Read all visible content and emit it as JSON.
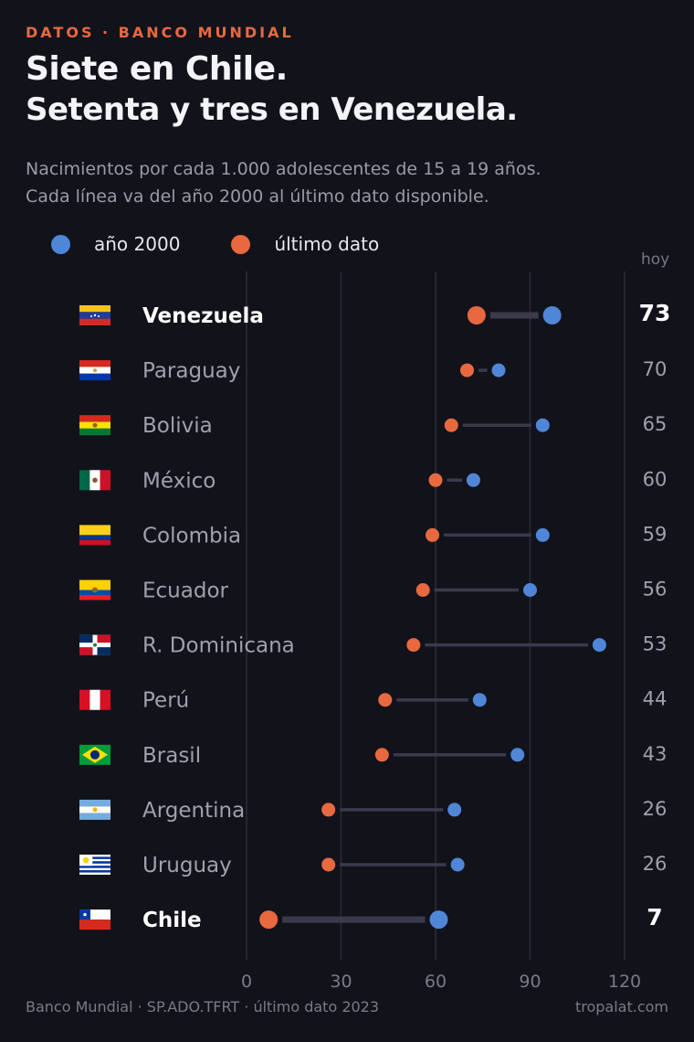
{
  "header": {
    "eyebrow": "DATOS · BANCO MUNDIAL",
    "title_line1": "Siete en Chile.",
    "title_line2": "Setenta y tres en Venezuela.",
    "subtitle_line1": "Nacimientos por cada 1.000 adolescentes de 15 a 19 años.",
    "subtitle_line2": "Cada línea va del año 2000 al último dato disponible."
  },
  "legend": {
    "start_label": "año 2000",
    "end_label": "último dato",
    "column_label": "hoy"
  },
  "colors": {
    "start": "#4f86d8",
    "end": "#e8693f",
    "connector": "#3a3a4c",
    "grid": "#2c2c38",
    "highlight_text": "#ffffff",
    "muted_text": "#a0a0ae",
    "background": "#12121b"
  },
  "chart_data": {
    "type": "dumbbell",
    "x_ticks": [
      "0",
      "30",
      "60",
      "90",
      "120"
    ],
    "xlim": [
      0,
      120
    ],
    "grid": true,
    "legend_placement": "top-left",
    "series": [
      {
        "name": "año 2000",
        "key": "start"
      },
      {
        "name": "último dato",
        "key": "end"
      }
    ],
    "rows": [
      {
        "country": "Venezuela",
        "flag": "VE",
        "start": 97,
        "end": 73,
        "label": "73",
        "highlight": true
      },
      {
        "country": "Paraguay",
        "flag": "PY",
        "start": 80,
        "end": 70,
        "label": "70",
        "highlight": false
      },
      {
        "country": "Bolivia",
        "flag": "BO",
        "start": 94,
        "end": 65,
        "label": "65",
        "highlight": false
      },
      {
        "country": "México",
        "flag": "MX",
        "start": 72,
        "end": 60,
        "label": "60",
        "highlight": false
      },
      {
        "country": "Colombia",
        "flag": "CO",
        "start": 94,
        "end": 59,
        "label": "59",
        "highlight": false
      },
      {
        "country": "Ecuador",
        "flag": "EC",
        "start": 90,
        "end": 56,
        "label": "56",
        "highlight": false
      },
      {
        "country": "R. Dominicana",
        "flag": "DO",
        "start": 112,
        "end": 53,
        "label": "53",
        "highlight": false
      },
      {
        "country": "Perú",
        "flag": "PE",
        "start": 74,
        "end": 44,
        "label": "44",
        "highlight": false
      },
      {
        "country": "Brasil",
        "flag": "BR",
        "start": 86,
        "end": 43,
        "label": "43",
        "highlight": false
      },
      {
        "country": "Argentina",
        "flag": "AR",
        "start": 66,
        "end": 26,
        "label": "26",
        "highlight": false
      },
      {
        "country": "Uruguay",
        "flag": "UY",
        "start": 67,
        "end": 26,
        "label": "26",
        "highlight": false
      },
      {
        "country": "Chile",
        "flag": "CL",
        "start": 61,
        "end": 7,
        "label": "7",
        "highlight": true
      }
    ]
  },
  "footer": {
    "source": "Banco Mundial · SP.ADO.TFRT · último dato 2023",
    "site": "tropalat.com"
  }
}
